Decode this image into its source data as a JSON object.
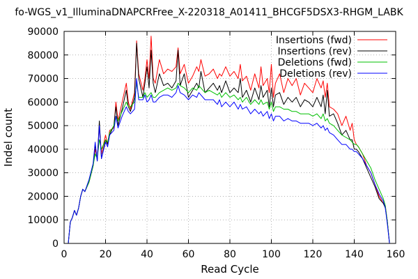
{
  "chart_data": {
    "type": "line",
    "title": "fo-WGS_v1_IlluminaDNAPCRFree_X-220318_A01411_BHCGF5DSX3-RHGM_LABK",
    "xlabel": "Read Cycle",
    "ylabel": "Indel count",
    "xlim": [
      0,
      160
    ],
    "ylim": [
      0,
      90000
    ],
    "x_ticks": [
      "0",
      "20",
      "40",
      "60",
      "80",
      "100",
      "120",
      "140",
      "160"
    ],
    "y_ticks": [
      "0",
      "10000",
      "20000",
      "30000",
      "40000",
      "50000",
      "60000",
      "70000",
      "80000",
      "90000"
    ],
    "grid": true,
    "legend_position": "top-right",
    "series": [
      {
        "name": "Insertions (fwd)",
        "color": "#ff0000",
        "x": [
          2,
          3,
          4,
          5,
          6,
          7,
          8,
          9,
          10,
          12,
          14,
          15,
          16,
          17,
          18,
          20,
          21,
          22,
          24,
          25,
          26,
          28,
          30,
          31,
          32,
          34,
          35,
          36,
          38,
          39,
          40,
          41,
          42,
          43,
          44,
          46,
          48,
          50,
          52,
          54,
          55,
          56,
          58,
          60,
          62,
          64,
          65,
          66,
          68,
          70,
          72,
          74,
          75,
          76,
          78,
          80,
          82,
          84,
          85,
          86,
          88,
          90,
          92,
          94,
          95,
          96,
          98,
          99,
          100,
          101,
          102,
          104,
          106,
          108,
          110,
          112,
          114,
          116,
          118,
          120,
          122,
          124,
          125,
          126,
          127,
          128,
          130,
          132,
          134,
          136,
          138,
          139,
          140,
          141,
          142,
          144,
          146,
          148,
          150,
          152,
          154,
          155,
          156,
          157
        ],
        "y": [
          0,
          9000,
          11000,
          14000,
          12000,
          15000,
          20000,
          23000,
          22000,
          26000,
          33000,
          40000,
          36000,
          50000,
          38000,
          46000,
          42000,
          48000,
          49000,
          60000,
          52000,
          60000,
          68000,
          60000,
          57000,
          64000,
          86000,
          72000,
          65000,
          70000,
          78000,
          70000,
          88000,
          70000,
          68000,
          78000,
          72000,
          74000,
          73000,
          75000,
          83000,
          72000,
          76000,
          68000,
          71000,
          75000,
          73000,
          78000,
          71000,
          72000,
          74000,
          70000,
          72000,
          71000,
          75000,
          71000,
          73000,
          70000,
          76000,
          69000,
          71000,
          65000,
          72000,
          66000,
          75000,
          67000,
          70000,
          64000,
          76000,
          62000,
          68000,
          72000,
          64000,
          70000,
          67000,
          70000,
          63000,
          68000,
          66000,
          64000,
          70000,
          66000,
          69000,
          62000,
          68000,
          58000,
          57000,
          55000,
          50000,
          54000,
          48000,
          51000,
          44000,
          42000,
          41000,
          38000,
          33000,
          30000,
          25000,
          20000,
          17000,
          16000,
          9000,
          0
        ]
      },
      {
        "name": "Insertions (rev)",
        "color": "#000000",
        "x": [
          2,
          3,
          4,
          5,
          6,
          7,
          8,
          9,
          10,
          12,
          14,
          15,
          16,
          17,
          18,
          20,
          21,
          22,
          24,
          25,
          26,
          28,
          30,
          31,
          32,
          34,
          35,
          36,
          38,
          39,
          40,
          41,
          42,
          43,
          44,
          46,
          48,
          50,
          52,
          54,
          55,
          56,
          58,
          60,
          62,
          64,
          65,
          66,
          68,
          70,
          72,
          74,
          75,
          76,
          78,
          80,
          82,
          84,
          85,
          86,
          88,
          90,
          92,
          94,
          95,
          96,
          98,
          99,
          100,
          101,
          102,
          104,
          106,
          108,
          110,
          112,
          114,
          116,
          118,
          120,
          122,
          124,
          125,
          126,
          127,
          128,
          130,
          132,
          134,
          136,
          138,
          139,
          140,
          141,
          142,
          144,
          146,
          148,
          150,
          152,
          154,
          155,
          156,
          157
        ],
        "y": [
          0,
          9000,
          11000,
          14000,
          12000,
          15000,
          20000,
          23000,
          22000,
          26000,
          33000,
          42000,
          35000,
          52000,
          36000,
          44000,
          42000,
          46000,
          50000,
          58000,
          50000,
          57000,
          65000,
          58000,
          56000,
          62000,
          85000,
          70000,
          62000,
          68000,
          75000,
          66000,
          82000,
          68000,
          64000,
          72000,
          67000,
          68000,
          66000,
          69000,
          82000,
          67000,
          72000,
          62000,
          65000,
          68000,
          66000,
          73000,
          64000,
          66000,
          68000,
          65000,
          67000,
          64000,
          69000,
          64000,
          66000,
          64000,
          70000,
          62000,
          65000,
          60000,
          66000,
          61000,
          67000,
          62000,
          65000,
          58000,
          66000,
          58000,
          63000,
          64000,
          59000,
          62000,
          60000,
          62000,
          58000,
          61000,
          60000,
          58000,
          62000,
          58000,
          63000,
          55000,
          65000,
          54000,
          55000,
          51000,
          46000,
          48000,
          44000,
          44000,
          40000,
          40000,
          39000,
          36000,
          32000,
          28000,
          24000,
          19000,
          17000,
          15000,
          9000,
          0
        ]
      },
      {
        "name": "Deletions (fwd)",
        "color": "#00c000",
        "x": [
          2,
          3,
          4,
          5,
          6,
          7,
          8,
          9,
          10,
          12,
          14,
          15,
          16,
          17,
          18,
          20,
          21,
          22,
          24,
          25,
          26,
          28,
          30,
          31,
          32,
          34,
          35,
          36,
          38,
          39,
          40,
          41,
          42,
          43,
          44,
          46,
          48,
          50,
          52,
          54,
          55,
          56,
          58,
          60,
          62,
          64,
          65,
          66,
          68,
          70,
          72,
          74,
          75,
          76,
          78,
          80,
          82,
          84,
          85,
          86,
          88,
          90,
          92,
          94,
          95,
          96,
          98,
          99,
          100,
          101,
          102,
          104,
          106,
          108,
          110,
          112,
          114,
          116,
          118,
          120,
          122,
          124,
          125,
          126,
          127,
          128,
          130,
          132,
          134,
          136,
          138,
          139,
          140,
          141,
          142,
          144,
          146,
          148,
          150,
          152,
          154,
          155,
          156,
          157
        ],
        "y": [
          0,
          9000,
          11000,
          14000,
          12000,
          15000,
          20000,
          23000,
          22000,
          26000,
          33000,
          38000,
          36000,
          44000,
          40000,
          44000,
          43000,
          47000,
          50000,
          54000,
          52000,
          56000,
          60000,
          58000,
          58000,
          60000,
          68000,
          62000,
          62000,
          64000,
          62000,
          63000,
          64000,
          62000,
          62000,
          64000,
          65000,
          66000,
          65000,
          66000,
          68000,
          67000,
          66000,
          64000,
          66000,
          65000,
          67000,
          66000,
          64000,
          65000,
          64000,
          63000,
          64000,
          62000,
          64000,
          62000,
          63000,
          61000,
          62000,
          60000,
          62000,
          59000,
          61000,
          59000,
          61000,
          59000,
          60000,
          57000,
          60000,
          56000,
          58000,
          58000,
          57000,
          57000,
          56000,
          56000,
          55000,
          55000,
          55000,
          54000,
          55000,
          53000,
          55000,
          52000,
          53000,
          51000,
          50000,
          48000,
          46000,
          45000,
          44000,
          43000,
          42000,
          42000,
          41000,
          38000,
          35000,
          32000,
          27000,
          23000,
          19000,
          16000,
          9000,
          0
        ]
      },
      {
        "name": "Deletions (rev)",
        "color": "#0000ff",
        "x": [
          2,
          3,
          4,
          5,
          6,
          7,
          8,
          9,
          10,
          12,
          14,
          15,
          16,
          17,
          18,
          20,
          21,
          22,
          24,
          25,
          26,
          28,
          30,
          31,
          32,
          34,
          35,
          36,
          38,
          39,
          40,
          41,
          42,
          43,
          44,
          46,
          48,
          50,
          52,
          54,
          55,
          56,
          58,
          60,
          62,
          64,
          65,
          66,
          68,
          70,
          72,
          74,
          75,
          76,
          78,
          80,
          82,
          84,
          85,
          86,
          88,
          90,
          92,
          94,
          95,
          96,
          98,
          99,
          100,
          101,
          102,
          104,
          106,
          108,
          110,
          112,
          114,
          116,
          118,
          120,
          122,
          124,
          125,
          126,
          127,
          128,
          130,
          132,
          134,
          136,
          138,
          139,
          140,
          141,
          142,
          144,
          146,
          148,
          150,
          152,
          154,
          155,
          156,
          157
        ],
        "y": [
          0,
          9000,
          11000,
          14000,
          12000,
          15000,
          20000,
          23000,
          22000,
          27000,
          34000,
          43000,
          35000,
          50000,
          36000,
          43000,
          41000,
          46000,
          48000,
          54000,
          49000,
          54000,
          58000,
          56000,
          55000,
          57000,
          70000,
          61000,
          61000,
          63000,
          60000,
          61000,
          63000,
          60000,
          60000,
          62000,
          63000,
          63000,
          62000,
          64000,
          67000,
          64000,
          63000,
          61000,
          63000,
          62000,
          64000,
          63000,
          61000,
          61000,
          61000,
          59000,
          61000,
          58000,
          60000,
          58000,
          60000,
          57000,
          59000,
          57000,
          58000,
          55000,
          57000,
          55000,
          56000,
          54000,
          56000,
          53000,
          55000,
          52000,
          54000,
          54000,
          52000,
          53000,
          52000,
          52000,
          51000,
          51000,
          51000,
          50000,
          51000,
          49000,
          50000,
          48000,
          49000,
          47000,
          46000,
          44000,
          42000,
          42000,
          40000,
          40000,
          39000,
          39000,
          38000,
          36000,
          33000,
          30000,
          25000,
          21000,
          18000,
          15000,
          8000,
          0
        ]
      }
    ]
  }
}
